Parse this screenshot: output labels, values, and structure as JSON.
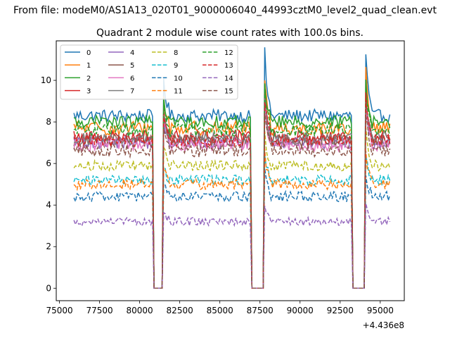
{
  "figure": {
    "suptitle": "From file: modeM0/AS1A13_020T01_9000006040_44993cztM0_level2_quad_clean.evt"
  },
  "chart_data": {
    "type": "line",
    "title": "Quadrant 2 module wise count rates with 100.0s bins.",
    "xlabel": "",
    "ylabel": "",
    "x_offset_label": "+4.436e8",
    "xlim": [
      74800,
      96500
    ],
    "ylim": [
      -0.6,
      11.9
    ],
    "xticks": [
      75000,
      77500,
      80000,
      82500,
      85000,
      87500,
      90000,
      92500,
      95000
    ],
    "xtick_labels": [
      "75000",
      "77500",
      "80000",
      "82500",
      "85000",
      "87500",
      "90000",
      "92500",
      "95000"
    ],
    "yticks": [
      0,
      2,
      4,
      6,
      8,
      10
    ],
    "ytick_labels": [
      "0",
      "2",
      "4",
      "6",
      "8",
      "10"
    ],
    "grid": false,
    "legend": {
      "position": "top-left",
      "columns": 4
    },
    "x_start": 75900,
    "x_step": 100,
    "x_end": 95600,
    "gaps": [
      [
        80800,
        81500
      ],
      [
        86900,
        87800
      ],
      [
        93200,
        94100
      ]
    ],
    "series": [
      {
        "name": "0",
        "color": "#1f77b4",
        "dash": "solid",
        "mean": 8.3,
        "noise": 0.3,
        "flare": 11.3
      },
      {
        "name": "1",
        "color": "#ff7f0e",
        "dash": "solid",
        "mean": 7.7,
        "noise": 0.35,
        "flare": 10.3
      },
      {
        "name": "2",
        "color": "#2ca02c",
        "dash": "solid",
        "mean": 8.0,
        "noise": 0.3,
        "flare": 10.0
      },
      {
        "name": "3",
        "color": "#d62728",
        "dash": "solid",
        "mean": 7.3,
        "noise": 0.3,
        "flare": 9.5
      },
      {
        "name": "4",
        "color": "#9467bd",
        "dash": "solid",
        "mean": 7.0,
        "noise": 0.3,
        "flare": 9.0
      },
      {
        "name": "5",
        "color": "#8c564b",
        "dash": "solid",
        "mean": 7.1,
        "noise": 0.3,
        "flare": 9.2
      },
      {
        "name": "6",
        "color": "#e377c2",
        "dash": "solid",
        "mean": 6.9,
        "noise": 0.3,
        "flare": 8.8
      },
      {
        "name": "7",
        "color": "#7f7f7f",
        "dash": "solid",
        "mean": 7.2,
        "noise": 0.3,
        "flare": 9.1
      },
      {
        "name": "8",
        "color": "#bcbd22",
        "dash": "dashed",
        "mean": 5.9,
        "noise": 0.25,
        "flare": 7.5
      },
      {
        "name": "9",
        "color": "#17becf",
        "dash": "dashed",
        "mean": 5.2,
        "noise": 0.25,
        "flare": 6.3
      },
      {
        "name": "10",
        "color": "#1f77b4",
        "dash": "dashed",
        "mean": 4.4,
        "noise": 0.25,
        "flare": 5.6
      },
      {
        "name": "11",
        "color": "#ff7f0e",
        "dash": "dashed",
        "mean": 5.0,
        "noise": 0.25,
        "flare": 6.5
      },
      {
        "name": "12",
        "color": "#2ca02c",
        "dash": "dashed",
        "mean": 7.6,
        "noise": 0.3,
        "flare": 9.6
      },
      {
        "name": "13",
        "color": "#d62728",
        "dash": "dashed",
        "mean": 7.1,
        "noise": 0.3,
        "flare": 9.2
      },
      {
        "name": "14",
        "color": "#9467bd",
        "dash": "dashed",
        "mean": 3.2,
        "noise": 0.2,
        "flare": 4.1
      },
      {
        "name": "15",
        "color": "#8c564b",
        "dash": "dashed",
        "mean": 6.6,
        "noise": 0.3,
        "flare": 8.6
      }
    ]
  }
}
